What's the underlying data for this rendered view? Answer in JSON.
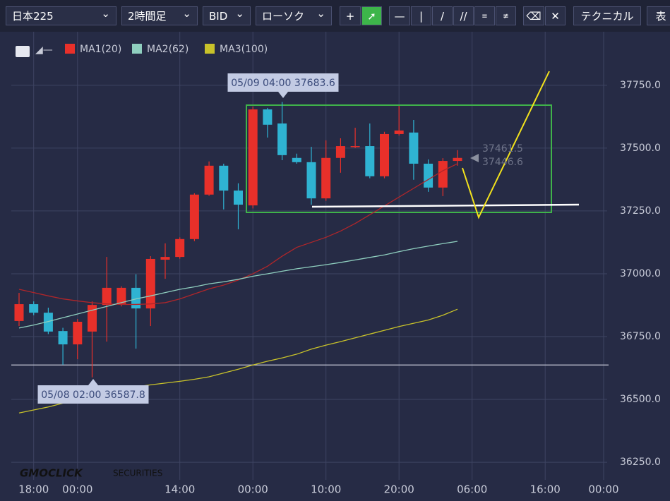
{
  "toolbar": {
    "symbol": "日本225",
    "interval": "2時間足",
    "side": "BID",
    "style": "ローソク",
    "technical": "テクニカル",
    "cut": "表"
  },
  "chart_data": {
    "type": "candlestick",
    "legend": [
      "MA1(20)",
      "MA2(62)",
      "MA3(100)"
    ],
    "categories": [
      null,
      "18:00",
      null,
      null,
      "00:00",
      null,
      null,
      null,
      null,
      null,
      null,
      "14:00",
      null,
      null,
      null,
      null,
      "00:00",
      null,
      null,
      null,
      null,
      "10:00",
      null,
      null,
      null,
      null,
      "20:00",
      null,
      null,
      null,
      null,
      "06:00",
      null,
      null,
      null,
      null,
      "16:00",
      null,
      null,
      null,
      "00:00"
    ],
    "open": [
      36812,
      36879,
      36845,
      36772,
      36719,
      36770,
      36876,
      36880,
      36944,
      36862,
      37056,
      37067,
      37138,
      37315,
      37430,
      37331,
      37272,
      37654,
      37598,
      37461,
      37444,
      37300,
      37461,
      37505,
      37508,
      37388,
      37556,
      37562,
      37438,
      37343,
      37449,
      null,
      null,
      null,
      null,
      null,
      null,
      null,
      null,
      null,
      null
    ],
    "high": [
      36924,
      36890,
      36865,
      36785,
      36820,
      36890,
      37067,
      36950,
      36998,
      37070,
      37121,
      37145,
      37320,
      37447,
      37438,
      37360,
      37665,
      37660,
      37683.6,
      37478,
      37505,
      37531,
      37539,
      37581,
      37598,
      37565,
      37668,
      37612,
      37455,
      37460,
      37492,
      null,
      null,
      null,
      null,
      null,
      null,
      null,
      null,
      null,
      null
    ],
    "low": [
      36792,
      36835,
      36760,
      36638,
      36660,
      36587.8,
      36730,
      36870,
      36702,
      36792,
      36980,
      37060,
      37130,
      37310,
      37256,
      37177,
      37260,
      37542,
      37452,
      37438,
      37275,
      37290,
      37402,
      37500,
      37380,
      37380,
      37550,
      37374,
      37326,
      37309,
      37430,
      null,
      null,
      null,
      null,
      null,
      null,
      null,
      null,
      null,
      null
    ],
    "close": [
      36879,
      36845,
      36770,
      36719,
      36809,
      36876,
      36944,
      36944,
      36862,
      37059,
      37067,
      37138,
      37315,
      37430,
      37331,
      37275,
      37654,
      37593,
      37472,
      37444,
      37300,
      37461,
      37508,
      37508,
      37388,
      37556,
      37570,
      37438,
      37343,
      37449,
      37461,
      null,
      null,
      null,
      null,
      null,
      null,
      null,
      null,
      null,
      null
    ],
    "up_color": "#e8302a",
    "down_color": "#2fb3d2",
    "series": [
      {
        "name": "MA1(20)",
        "color": "#b0262a",
        "values": [
          36938,
          36925,
          36912,
          36900,
          36892,
          36885,
          36880,
          36878,
          36878,
          36880,
          36885,
          36900,
          36920,
          36940,
          36955,
          36975,
          37000,
          37030,
          37070,
          37105,
          37125,
          37145,
          37170,
          37200,
          37235,
          37270,
          37305,
          37340,
          37375,
          37410,
          37438,
          null,
          null,
          null,
          null,
          null,
          null,
          null,
          null,
          null,
          null
        ]
      },
      {
        "name": "MA2(62)",
        "color": "#8fcfbf",
        "values": [
          36784,
          36796,
          36810,
          36825,
          36840,
          36855,
          36870,
          36885,
          36900,
          36912,
          36925,
          36938,
          36948,
          36960,
          36968,
          36978,
          36990,
          37000,
          37010,
          37020,
          37028,
          37036,
          37045,
          37055,
          37065,
          37075,
          37088,
          37100,
          37110,
          37120,
          37129,
          null,
          null,
          null,
          null,
          null,
          null,
          null,
          null,
          null,
          null
        ]
      },
      {
        "name": "MA3(100)",
        "color": "#c8c22a",
        "values": [
          36446,
          36458,
          36470,
          36485,
          36502,
          36515,
          36528,
          36540,
          36550,
          36558,
          36565,
          36572,
          36580,
          36590,
          36605,
          36620,
          36637,
          36652,
          36665,
          36680,
          36700,
          36716,
          36730,
          36745,
          36760,
          36775,
          36790,
          36803,
          36816,
          36835,
          36859,
          null,
          null,
          null,
          null,
          null,
          null,
          null,
          null,
          null,
          null
        ]
      }
    ],
    "ylim": [
      36180,
      37963
    ],
    "yticks": [
      {
        "value": 36250,
        "label": "36250.0"
      },
      {
        "value": 36500,
        "label": "36500.0"
      },
      {
        "value": 36750,
        "label": "36750.0"
      },
      {
        "value": 37000,
        "label": "37000.0"
      },
      {
        "value": 37250,
        "label": "37250.0"
      },
      {
        "value": 37500,
        "label": "37500.0"
      },
      {
        "value": 37750,
        "label": "37750.0"
      }
    ],
    "grid": true,
    "reference_line": 36637,
    "annotations": [
      "05/09 04:00 37683.6",
      "05/08 02:00 36587.8"
    ],
    "price_labels": [
      "37461.5",
      "37446.6"
    ],
    "logo": "GMOCLICK",
    "logo_sub": "SECURITIES"
  }
}
